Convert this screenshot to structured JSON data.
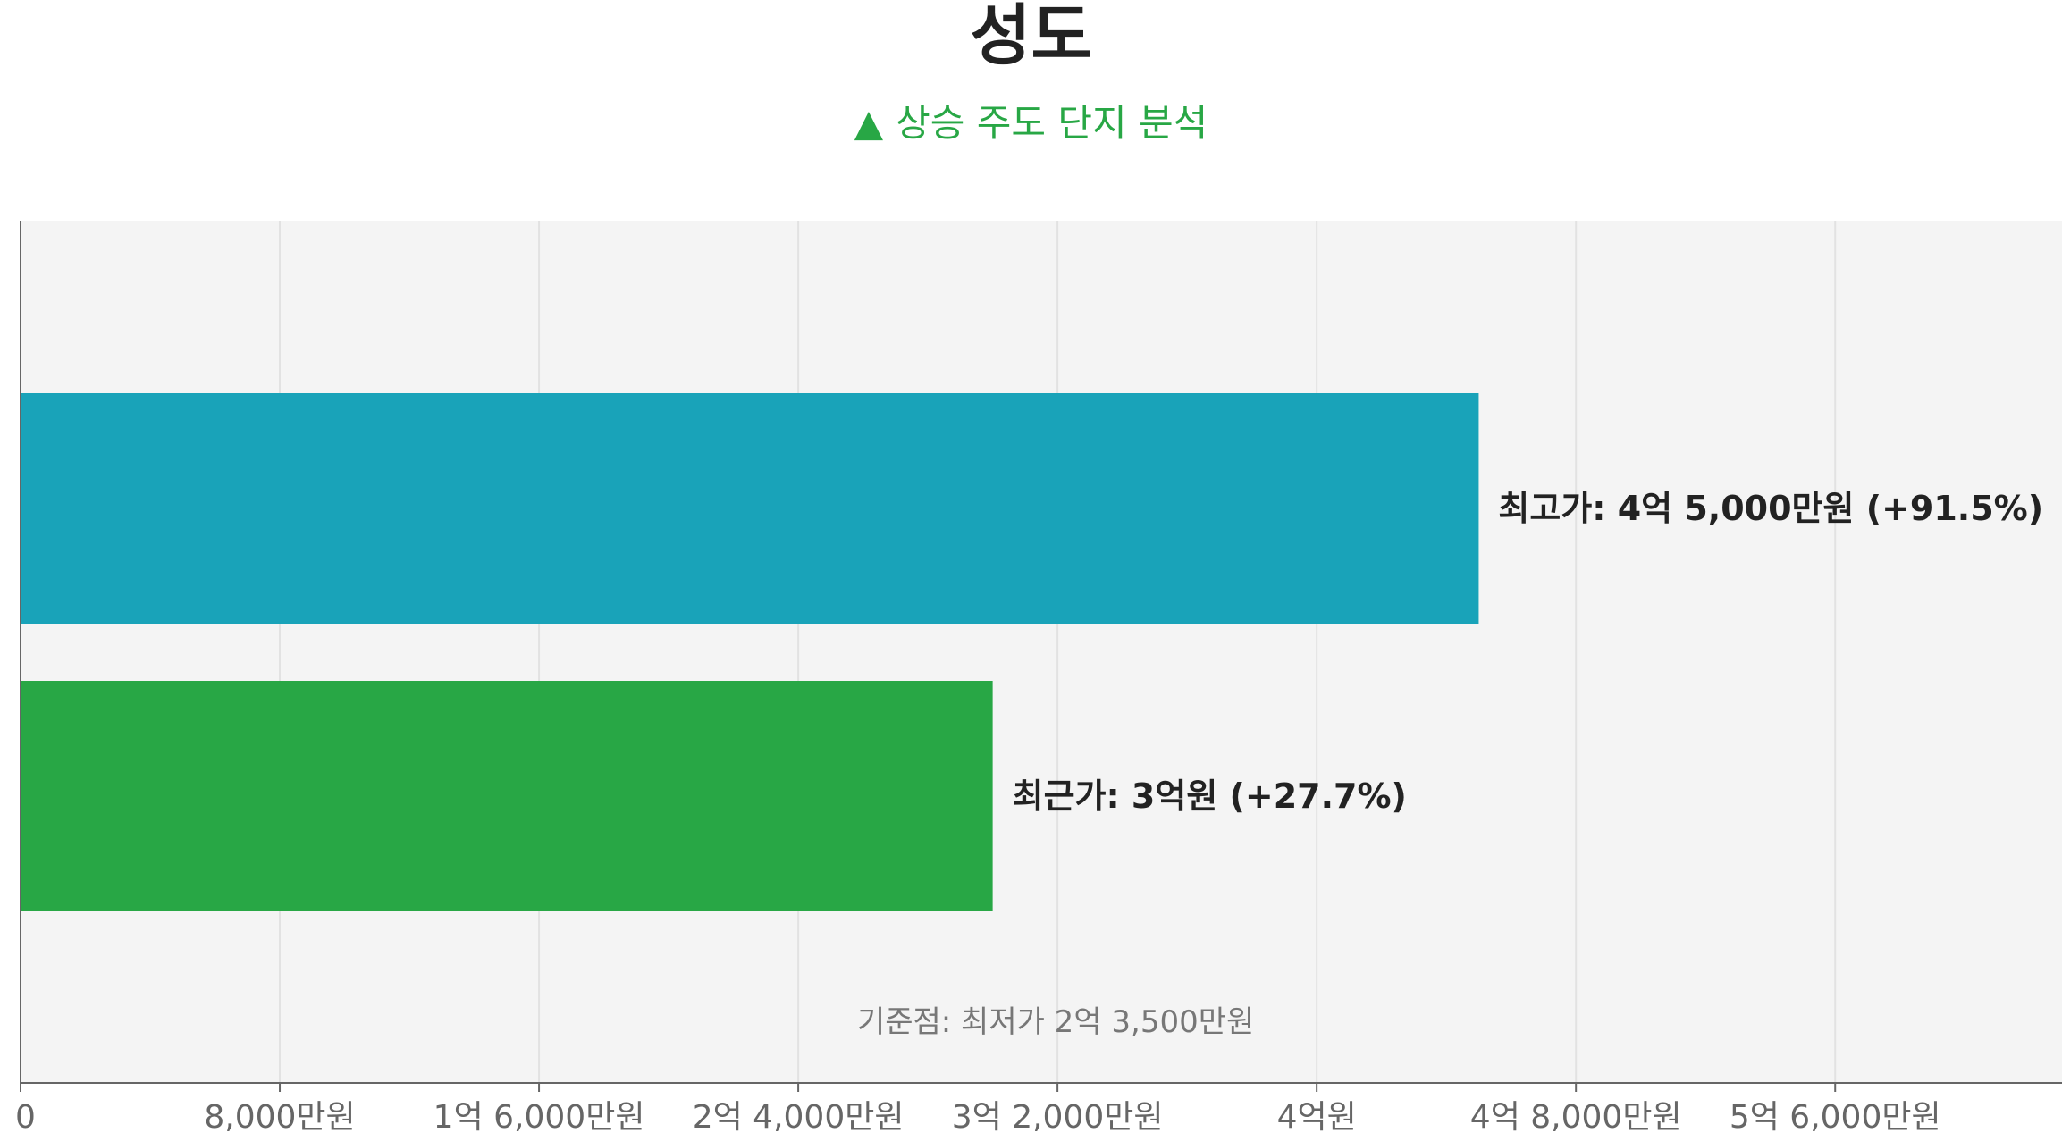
{
  "header": {
    "title": "성도",
    "subtitle_arrow": "▲",
    "subtitle_text": "상승 주도 단지 분석"
  },
  "colors": {
    "plot_background": "#f4f4f4",
    "grid": "#e2e2e2",
    "axis": "#666666",
    "accent_green": "#28a745",
    "bar_highest": "#19a3b9",
    "bar_recent": "#28a745"
  },
  "chart_data": {
    "type": "bar",
    "orientation": "horizontal",
    "title": "성도",
    "subtitle": "▲ 상승 주도 단지 분석",
    "xlabel": "",
    "ylabel": "",
    "unit": "만원",
    "xlim": [
      0,
      63000
    ],
    "grid": true,
    "ticks": [
      {
        "value": 0,
        "label": "0"
      },
      {
        "value": 8000,
        "label": "8,000만원"
      },
      {
        "value": 16000,
        "label": "1억 6,000만원"
      },
      {
        "value": 24000,
        "label": "2억 4,000만원"
      },
      {
        "value": 32000,
        "label": "3억 2,000만원"
      },
      {
        "value": 40000,
        "label": "4억원"
      },
      {
        "value": 48000,
        "label": "4억 8,000만원"
      },
      {
        "value": 56000,
        "label": "5억 6,000만원"
      }
    ],
    "bars": [
      {
        "value": 45000,
        "color": "#19a3b9",
        "label": "최고가: 4억 5,000만원 (+91.5%)"
      },
      {
        "value": 30000,
        "color": "#28a745",
        "label": "최근가: 3억원 (+27.7%)"
      }
    ],
    "baseline": {
      "value": 23500,
      "label": "기준점: 최저가 2억 3,500만원"
    }
  }
}
